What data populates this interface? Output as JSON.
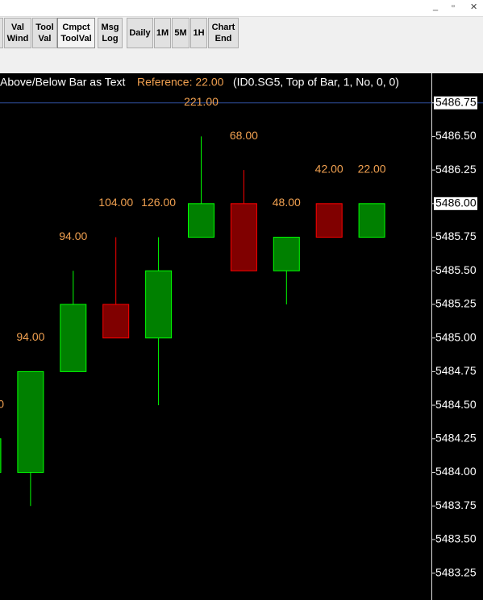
{
  "toolbar": {
    "buttons": [
      {
        "lines": [
          "Val",
          "Wind"
        ]
      },
      {
        "lines": [
          "Tool",
          "Val"
        ]
      },
      {
        "lines": [
          "Cmpct",
          "ToolVal"
        ],
        "pressed": true
      },
      {
        "lines": [
          "Msg",
          "Log"
        ]
      },
      {
        "lines": [
          "Daily"
        ]
      },
      {
        "lines": [
          "1M"
        ]
      },
      {
        "lines": [
          "5M"
        ]
      },
      {
        "lines": [
          "1H"
        ]
      },
      {
        "lines": [
          "Chart",
          "End"
        ]
      }
    ]
  },
  "study_header": {
    "name": "Above/Below Bar as Text",
    "reference": "Reference: 22.00",
    "params": "(ID0.SG5, Top of Bar, 1, No, 0, 0)"
  },
  "chart_data": {
    "type": "candlestick",
    "open": [
      5484.0,
      5484.0,
      5484.75,
      5485.25,
      5485.0,
      5485.75,
      5486.0,
      5485.5,
      5486.0,
      5485.75
    ],
    "high": [
      5484.25,
      5484.75,
      5485.5,
      5485.75,
      5485.75,
      5486.5,
      5486.25,
      5485.75,
      5486.0,
      5486.0
    ],
    "low": [
      5484.0,
      5483.75,
      5484.75,
      5485.0,
      5484.5,
      5485.75,
      5485.5,
      5485.25,
      5485.75,
      5485.75
    ],
    "close": [
      5484.25,
      5484.75,
      5485.25,
      5485.0,
      5485.5,
      5486.0,
      5485.5,
      5485.75,
      5485.75,
      5486.0
    ],
    "bar_texts": [
      "0",
      "94.00",
      "94.00",
      "104.00",
      "126.00",
      "221.00",
      "68.00",
      "48.00",
      "42.00",
      "22.00"
    ],
    "up_color": "#008000",
    "up_border": "#00ff00",
    "down_color": "#800000",
    "down_border": "#ff0000",
    "text_color": "#f0a050",
    "ylim": [
      5483.05,
      5486.97
    ],
    "yticks": [
      5486.75,
      {
        "value": 5486.5,
        "label": "5486.50"
      },
      5486.25,
      {
        "value": 5486,
        "label": "5486.00"
      },
      5485.75,
      {
        "value": 5485.5,
        "label": "5485.50"
      },
      5485.25,
      {
        "value": 5485,
        "label": "5485.00"
      },
      5484.75,
      {
        "value": 5484.5,
        "label": "5484.50"
      },
      5484.25,
      {
        "value": 5484,
        "label": "5484.00"
      },
      5483.75,
      {
        "value": 5483.5,
        "label": "5483.50"
      },
      5483.25
    ],
    "reference_line": 5486.75
  }
}
